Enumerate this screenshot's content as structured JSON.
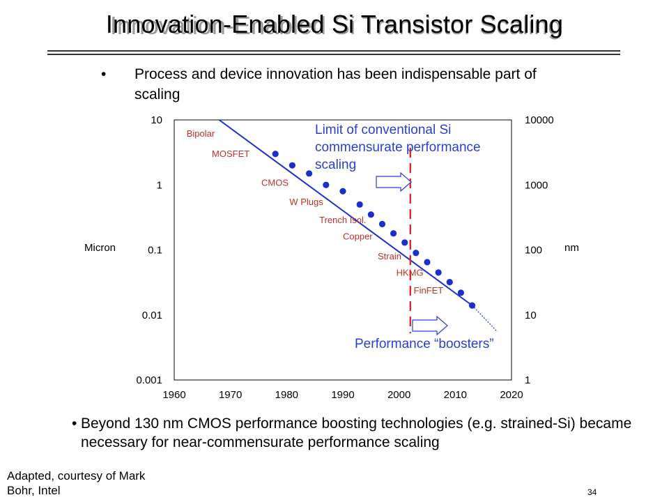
{
  "slide": {
    "title": "Innovation-Enabled Si Transistor Scaling",
    "bullet1": "Process and device innovation has been indispensable part of scaling",
    "bullet2": "Beyond 130 nm CMOS performance boosting technologies (e.g. strained-Si) became necessary for near-commensurate performance scaling",
    "bullet_symbol": "•",
    "credit": "Adapted, courtesy of Mark Bohr, Intel",
    "page_number": "34"
  },
  "chart_data": {
    "type": "scatter",
    "xlim": [
      1960,
      2020
    ],
    "xticks": [
      1960,
      1970,
      1980,
      1990,
      2000,
      2010,
      2020
    ],
    "y_left": {
      "label": "Micron",
      "scale": "log",
      "lim": [
        0.001,
        10
      ],
      "ticks": [
        "0.001",
        "0.01",
        "0.1",
        "1",
        "10"
      ]
    },
    "y_right": {
      "label": "nm",
      "scale": "log",
      "lim": [
        1,
        10000
      ],
      "ticks": [
        "1",
        "10",
        "100",
        "1000",
        "10000"
      ]
    },
    "series": [
      {
        "color": "#1a2fcc",
        "points": [
          {
            "x": 1978,
            "y": 3.0
          },
          {
            "x": 1981,
            "y": 2.0
          },
          {
            "x": 1984,
            "y": 1.5
          },
          {
            "x": 1987,
            "y": 1.0
          },
          {
            "x": 1990,
            "y": 0.8
          },
          {
            "x": 1993,
            "y": 0.5
          },
          {
            "x": 1995,
            "y": 0.35
          },
          {
            "x": 1997,
            "y": 0.25
          },
          {
            "x": 1999,
            "y": 0.18
          },
          {
            "x": 2001,
            "y": 0.13
          },
          {
            "x": 2003,
            "y": 0.09
          },
          {
            "x": 2005,
            "y": 0.065
          },
          {
            "x": 2007,
            "y": 0.045
          },
          {
            "x": 2009,
            "y": 0.032
          },
          {
            "x": 2011,
            "y": 0.022
          },
          {
            "x": 2013,
            "y": 0.014
          }
        ],
        "trend_solid": [
          [
            1968,
            10
          ],
          [
            2013,
            0.014
          ]
        ],
        "trend_dotted": [
          [
            2013,
            0.014
          ],
          [
            2017.5,
            0.0055
          ]
        ]
      }
    ],
    "innovations": [
      {
        "label": "Bipolar",
        "x": 1962.2,
        "y": 5.5
      },
      {
        "label": "MOSFET",
        "x": 1966.7,
        "y": 2.7
      },
      {
        "label": "CMOS",
        "x": 1975.5,
        "y": 0.97
      },
      {
        "label": "W Plugs",
        "x": 1980.5,
        "y": 0.49
      },
      {
        "label": "Trench Isol.",
        "x": 1985.8,
        "y": 0.26
      },
      {
        "label": "Copper",
        "x": 1990,
        "y": 0.145
      },
      {
        "label": "Strain",
        "x": 1996.2,
        "y": 0.072
      },
      {
        "label": "HKMG",
        "x": 1999.5,
        "y": 0.04
      },
      {
        "label": "FinFET",
        "x": 2002.6,
        "y": 0.0215
      }
    ],
    "limit_line_x": 2002,
    "annotations": {
      "limit": [
        "Limit of conventional Si",
        "commensurate performance",
        "scaling"
      ],
      "boosters": "Performance “boosters”"
    },
    "colors": {
      "series": "#1a2fcc",
      "innovation_labels": "#c0302a",
      "limit_line": "#d0302a",
      "annotation_text": "#2a3fd0",
      "arrow": "#2a3fd0"
    }
  }
}
